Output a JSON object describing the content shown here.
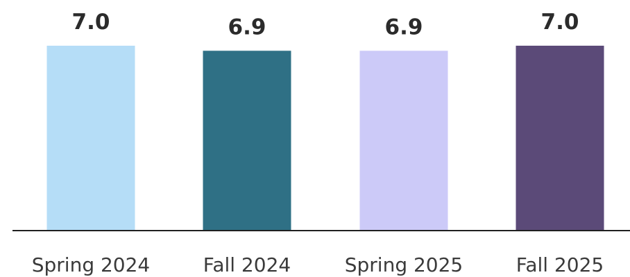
{
  "chart_data": {
    "type": "bar",
    "categories": [
      "Spring 2024",
      "Fall 2024",
      "Spring 2025",
      "Fall 2025"
    ],
    "values": [
      7.0,
      6.9,
      6.9,
      7.0
    ],
    "value_labels": [
      "7.0",
      "6.9",
      "6.9",
      "7.0"
    ],
    "colors": [
      "#b5ddf7",
      "#2f7085",
      "#cccaf8",
      "#5b4a78"
    ],
    "title": "",
    "xlabel": "",
    "ylabel": "",
    "ylim": [
      0,
      7.0
    ],
    "grid": false,
    "legend": "none"
  }
}
